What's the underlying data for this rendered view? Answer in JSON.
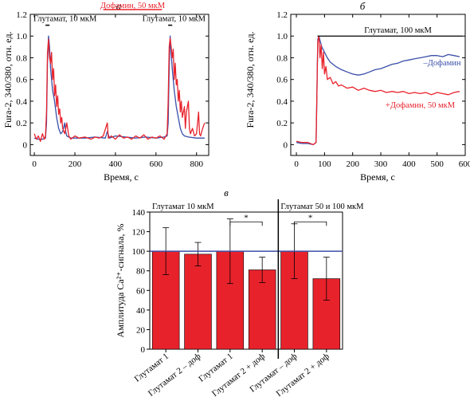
{
  "colors": {
    "red": "#e8222b",
    "blue": "#3a4fa8",
    "axis": "#000000"
  },
  "chart_data": [
    {
      "id": "a",
      "panel_letter": "а",
      "type": "line",
      "xlabel": "Время, с",
      "ylabel": "Fura-2, 340/380, отн. ед.",
      "xlim": [
        -20,
        860
      ],
      "ylim": [
        -0.1,
        1.2
      ],
      "xticks": [
        0,
        200,
        400,
        600,
        800
      ],
      "yticks": [
        0,
        0.2,
        0.4,
        0.6,
        0.8,
        1.0,
        1.2
      ],
      "ytick_labels": [
        "0",
        "0.2",
        "0.4",
        "0.6",
        "0.8",
        "1.0",
        "1.2"
      ],
      "annotations": {
        "glu1": {
          "text": "Глутамат, 10 мкМ",
          "bar": [
            55,
            75
          ]
        },
        "dop": {
          "text": "Дофамин, 50 мкМ",
          "bar": [
            340,
            630
          ]
        },
        "glu2": {
          "text": "Глутамат, 10 мкМ",
          "bar": [
            660,
            680
          ]
        }
      },
      "series": [
        {
          "color_key": "blue",
          "points": [
            [
              0,
              0.06
            ],
            [
              20,
              0.05
            ],
            [
              40,
              0.05
            ],
            [
              55,
              0.06
            ],
            [
              60,
              0.2
            ],
            [
              65,
              0.75
            ],
            [
              70,
              1.0
            ],
            [
              75,
              0.9
            ],
            [
              80,
              0.7
            ],
            [
              90,
              0.5
            ],
            [
              100,
              0.4
            ],
            [
              110,
              0.25
            ],
            [
              120,
              0.15
            ],
            [
              130,
              0.1
            ],
            [
              140,
              0.12
            ],
            [
              150,
              0.2
            ],
            [
              155,
              0.12
            ],
            [
              160,
              0.08
            ],
            [
              180,
              0.06
            ],
            [
              200,
              0.06
            ],
            [
              250,
              0.06
            ],
            [
              300,
              0.07
            ],
            [
              350,
              0.06
            ],
            [
              360,
              0.12
            ],
            [
              370,
              0.06
            ],
            [
              400,
              0.08
            ],
            [
              450,
              0.07
            ],
            [
              500,
              0.06
            ],
            [
              550,
              0.07
            ],
            [
              600,
              0.06
            ],
            [
              640,
              0.07
            ],
            [
              655,
              0.08
            ],
            [
              660,
              0.2
            ],
            [
              665,
              0.7
            ],
            [
              670,
              1.0
            ],
            [
              675,
              0.85
            ],
            [
              680,
              0.7
            ],
            [
              690,
              0.5
            ],
            [
              700,
              0.35
            ],
            [
              710,
              0.25
            ],
            [
              720,
              0.15
            ],
            [
              730,
              0.1
            ],
            [
              740,
              0.08
            ],
            [
              760,
              0.07
            ],
            [
              800,
              0.06
            ],
            [
              840,
              0.06
            ]
          ]
        },
        {
          "color_key": "red",
          "points": [
            [
              0,
              0.1
            ],
            [
              10,
              0.05
            ],
            [
              20,
              0.08
            ],
            [
              30,
              0.03
            ],
            [
              40,
              0.1
            ],
            [
              50,
              0.05
            ],
            [
              55,
              0.08
            ],
            [
              60,
              0.3
            ],
            [
              65,
              0.85
            ],
            [
              70,
              0.97
            ],
            [
              75,
              0.8
            ],
            [
              80,
              0.75
            ],
            [
              85,
              0.85
            ],
            [
              90,
              0.6
            ],
            [
              95,
              0.7
            ],
            [
              100,
              0.45
            ],
            [
              105,
              0.55
            ],
            [
              110,
              0.35
            ],
            [
              115,
              0.45
            ],
            [
              120,
              0.28
            ],
            [
              125,
              0.33
            ],
            [
              130,
              0.2
            ],
            [
              135,
              0.25
            ],
            [
              140,
              0.15
            ],
            [
              150,
              0.1
            ],
            [
              160,
              0.2
            ],
            [
              170,
              0.08
            ],
            [
              180,
              0.05
            ],
            [
              200,
              0.08
            ],
            [
              220,
              0.06
            ],
            [
              250,
              0.07
            ],
            [
              280,
              0.05
            ],
            [
              300,
              0.07
            ],
            [
              320,
              0.06
            ],
            [
              340,
              0.08
            ],
            [
              360,
              0.2
            ],
            [
              365,
              0.06
            ],
            [
              380,
              0.08
            ],
            [
              400,
              0.05
            ],
            [
              420,
              0.09
            ],
            [
              440,
              0.06
            ],
            [
              460,
              0.07
            ],
            [
              480,
              0.05
            ],
            [
              500,
              0.08
            ],
            [
              520,
              0.06
            ],
            [
              540,
              0.09
            ],
            [
              560,
              0.05
            ],
            [
              580,
              0.07
            ],
            [
              600,
              0.06
            ],
            [
              620,
              0.08
            ],
            [
              640,
              0.05
            ],
            [
              655,
              0.1
            ],
            [
              660,
              0.4
            ],
            [
              665,
              0.9
            ],
            [
              670,
              0.98
            ],
            [
              675,
              0.9
            ],
            [
              680,
              0.8
            ],
            [
              685,
              0.88
            ],
            [
              690,
              0.6
            ],
            [
              695,
              0.75
            ],
            [
              700,
              0.55
            ],
            [
              705,
              0.6
            ],
            [
              710,
              0.4
            ],
            [
              715,
              0.5
            ],
            [
              720,
              0.3
            ],
            [
              725,
              0.4
            ],
            [
              730,
              0.25
            ],
            [
              740,
              0.35
            ],
            [
              745,
              0.15
            ],
            [
              750,
              0.3
            ],
            [
              760,
              0.4
            ],
            [
              765,
              0.15
            ],
            [
              770,
              0.1
            ],
            [
              780,
              0.15
            ],
            [
              790,
              0.08
            ],
            [
              800,
              0.1
            ],
            [
              810,
              0.3
            ],
            [
              815,
              0.1
            ],
            [
              820,
              0.08
            ],
            [
              830,
              0.15
            ],
            [
              840,
              0.2
            ]
          ]
        }
      ]
    },
    {
      "id": "b",
      "panel_letter": "б",
      "type": "line",
      "xlabel": "Время, с",
      "ylabel": "Fura-2, 340/380, отн. ед.",
      "xlim": [
        -20,
        600
      ],
      "ylim": [
        -0.1,
        1.2
      ],
      "xticks": [
        0,
        100,
        200,
        300,
        400,
        500,
        600
      ],
      "yticks": [
        0,
        0.2,
        0.4,
        0.6,
        0.8,
        1.0,
        1.2
      ],
      "ytick_labels": [
        "0",
        "0.2",
        "0.4",
        "0.6",
        "0.8",
        "1.0",
        "1.2"
      ],
      "annotations": {
        "glu": {
          "text": "Глутамат, 100 мкМ",
          "bar": [
            75,
            590
          ]
        },
        "minus_dop": {
          "text": "–Дофамин",
          "at": [
            518,
            0.76
          ]
        },
        "plus_dop": {
          "text": "+Дофамин, 50 мкМ",
          "at": [
            440,
            0.37
          ]
        }
      },
      "series": [
        {
          "color_key": "blue",
          "points": [
            [
              0,
              0.02
            ],
            [
              20,
              0.01
            ],
            [
              40,
              0.01
            ],
            [
              60,
              0.0
            ],
            [
              70,
              0.02
            ],
            [
              73,
              0.5
            ],
            [
              76,
              0.97
            ],
            [
              80,
              1.0
            ],
            [
              85,
              0.95
            ],
            [
              90,
              0.9
            ],
            [
              100,
              0.85
            ],
            [
              110,
              0.8
            ],
            [
              120,
              0.76
            ],
            [
              140,
              0.72
            ],
            [
              160,
              0.69
            ],
            [
              180,
              0.67
            ],
            [
              200,
              0.65
            ],
            [
              220,
              0.64
            ],
            [
              240,
              0.65
            ],
            [
              260,
              0.67
            ],
            [
              280,
              0.69
            ],
            [
              300,
              0.7
            ],
            [
              320,
              0.72
            ],
            [
              340,
              0.74
            ],
            [
              360,
              0.75
            ],
            [
              380,
              0.77
            ],
            [
              400,
              0.78
            ],
            [
              420,
              0.79
            ],
            [
              440,
              0.8
            ],
            [
              460,
              0.81
            ],
            [
              480,
              0.82
            ],
            [
              500,
              0.82
            ],
            [
              520,
              0.81
            ],
            [
              540,
              0.83
            ],
            [
              560,
              0.82
            ],
            [
              580,
              0.81
            ]
          ]
        },
        {
          "color_key": "red",
          "points": [
            [
              0,
              0.03
            ],
            [
              20,
              0.02
            ],
            [
              40,
              0.02
            ],
            [
              60,
              0.0
            ],
            [
              70,
              0.02
            ],
            [
              73,
              0.5
            ],
            [
              76,
              0.95
            ],
            [
              80,
              1.0
            ],
            [
              84,
              0.8
            ],
            [
              88,
              0.92
            ],
            [
              92,
              0.7
            ],
            [
              96,
              0.85
            ],
            [
              100,
              0.65
            ],
            [
              105,
              0.72
            ],
            [
              110,
              0.6
            ],
            [
              120,
              0.62
            ],
            [
              130,
              0.56
            ],
            [
              140,
              0.58
            ],
            [
              150,
              0.54
            ],
            [
              160,
              0.55
            ],
            [
              180,
              0.52
            ],
            [
              200,
              0.53
            ],
            [
              220,
              0.5
            ],
            [
              240,
              0.52
            ],
            [
              260,
              0.5
            ],
            [
              280,
              0.49
            ],
            [
              300,
              0.5
            ],
            [
              320,
              0.48
            ],
            [
              340,
              0.49
            ],
            [
              360,
              0.48
            ],
            [
              380,
              0.49
            ],
            [
              400,
              0.47
            ],
            [
              420,
              0.48
            ],
            [
              440,
              0.47
            ],
            [
              460,
              0.48
            ],
            [
              480,
              0.46
            ],
            [
              500,
              0.48
            ],
            [
              520,
              0.47
            ],
            [
              540,
              0.46
            ],
            [
              560,
              0.48
            ],
            [
              580,
              0.49
            ]
          ]
        }
      ]
    },
    {
      "id": "v",
      "panel_letter": "в",
      "type": "bar",
      "ylabel": "Амплитуда Ca²⁺-сигнала, %",
      "ylim": [
        0,
        140
      ],
      "yticks": [
        0,
        20,
        40,
        60,
        80,
        100,
        120,
        140
      ],
      "reference_line": 100,
      "categories": [
        "Глутамат 1",
        "Глутамат 2 – доф",
        "Глутамат 1",
        "Глутамат 2 + доф",
        "Глутамат – доф",
        "Глутамат 2 + доф"
      ],
      "values": [
        100,
        97,
        100,
        81,
        100,
        72
      ],
      "errors": [
        24,
        12,
        33,
        13,
        28,
        22
      ],
      "group_labels": [
        "Глутамат 10 мкМ",
        "Глутамат 50 и 100 мкМ"
      ],
      "significance": [
        {
          "bars": [
            2,
            3
          ],
          "label": "*"
        },
        {
          "bars": [
            4,
            5
          ],
          "label": "*"
        }
      ]
    }
  ]
}
